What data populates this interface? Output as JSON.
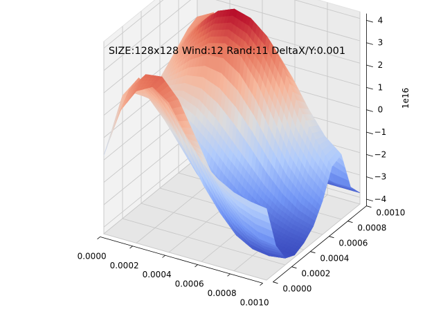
{
  "chart_data": {
    "type": "surface",
    "title": "SIZE:128x128 Wind:12 Rand:11 DeltaX/Y:0.001",
    "offset_label": "1e16",
    "x_ticks": [
      "0.0000",
      "0.0002",
      "0.0004",
      "0.0006",
      "0.0008",
      "0.0010"
    ],
    "y_ticks": [
      "0.0000",
      "0.0002",
      "0.0004",
      "0.0006",
      "0.0008",
      "0.0010"
    ],
    "z_ticks": [
      "−4",
      "−3",
      "−2",
      "−1",
      "0",
      "1",
      "2",
      "3",
      "4"
    ],
    "x_range": [
      0,
      0.001
    ],
    "y_range": [
      0,
      0.001
    ],
    "z_range": [
      -4.3,
      4.3
    ],
    "z_scale": 1e+16,
    "colormap": "coolwarm",
    "colormap_stops": [
      "#3b4cc0",
      "#7396f5",
      "#b0cbfc",
      "#dddcdc",
      "#f6b69b",
      "#e7745b",
      "#b40426"
    ],
    "pane_color": "#f2f2f2",
    "grid": true,
    "surface": {
      "grid_size": 11,
      "rows_increasing_y": [
        [
          -0.8,
          1.4,
          2.5,
          2.9,
          2.4,
          1.2,
          0.2,
          -0.4,
          -0.8,
          -1.0,
          -1.1
        ],
        [
          0.2,
          2.0,
          2.9,
          3.0,
          2.2,
          0.8,
          -0.6,
          -1.8,
          -2.6,
          -3.0,
          -3.1
        ],
        [
          1.2,
          2.2,
          1.7,
          0.6,
          -0.6,
          -1.8,
          -2.8,
          -3.6,
          -4.0,
          -4.1,
          -4.0
        ],
        [
          1.0,
          1.0,
          0.2,
          -0.8,
          -1.8,
          -2.6,
          -3.4,
          -3.8,
          -4.0,
          -4.1,
          -4.2
        ],
        [
          0.6,
          0.4,
          -0.2,
          -0.9,
          -1.6,
          -2.4,
          -3.0,
          -3.4,
          -3.7,
          -3.9,
          -4.0
        ],
        [
          0.4,
          0.6,
          0.8,
          0.6,
          0.0,
          -0.8,
          -1.6,
          -2.4,
          -3.0,
          -3.4,
          -3.6
        ],
        [
          0.6,
          1.4,
          2.2,
          2.8,
          3.0,
          2.6,
          1.6,
          0.2,
          -1.2,
          -2.2,
          -2.8
        ],
        [
          1.0,
          2.2,
          3.2,
          3.9,
          4.2,
          4.0,
          3.4,
          2.2,
          0.6,
          -0.6,
          -1.6
        ],
        [
          1.4,
          2.4,
          3.2,
          3.6,
          3.6,
          3.2,
          2.4,
          1.4,
          0.2,
          -0.8,
          -1.4
        ],
        [
          1.8,
          2.4,
          2.4,
          1.8,
          0.8,
          -0.4,
          -1.6,
          -2.6,
          -3.0,
          -3.2,
          -3.2
        ],
        [
          2.0,
          2.4,
          1.6,
          0.2,
          -1.2,
          -2.4,
          -3.2,
          -3.6,
          -3.8,
          -3.8,
          -3.8
        ]
      ]
    }
  }
}
